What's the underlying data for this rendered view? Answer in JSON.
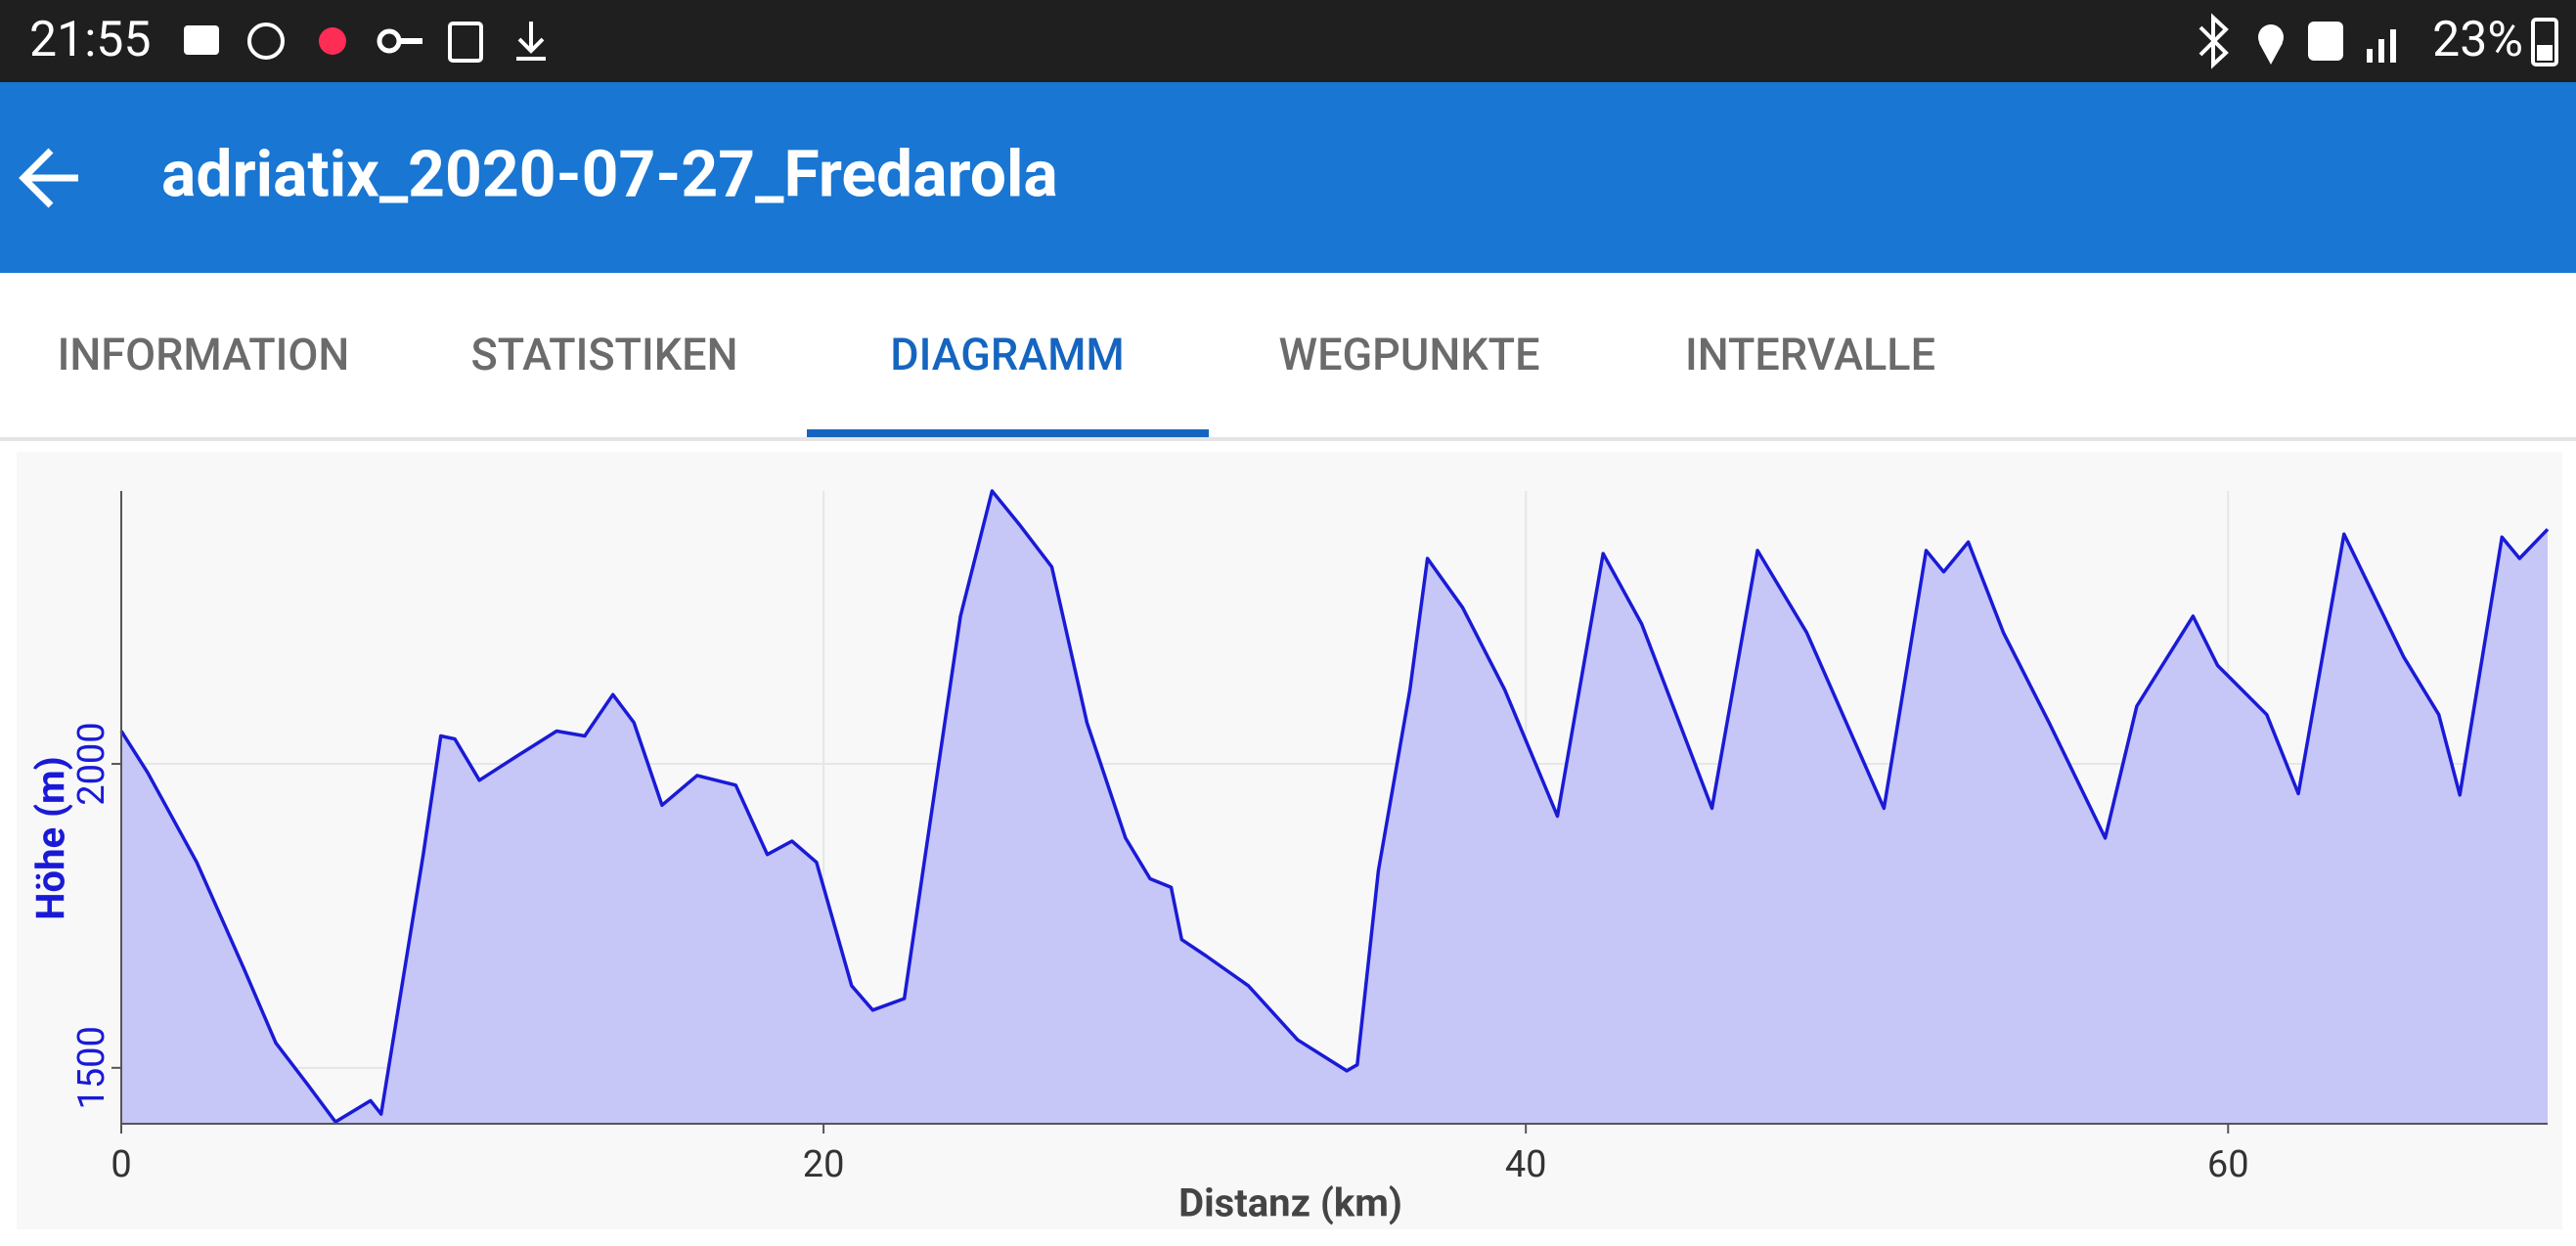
{
  "status_bar": {
    "time": "21:55",
    "battery": "23%"
  },
  "app_bar": {
    "title": "adriatix_2020-07-27_Fredarola"
  },
  "tabs": [
    "INFORMATION",
    "STATISTIKEN",
    "DIAGRAMM",
    "WEGPUNKTE",
    "INTERVALLE"
  ],
  "chart_data": {
    "type": "area",
    "x_label": "Distanz (km)",
    "y_label": "Höhe (m)",
    "color": "#1a1ad6",
    "fill": "#c6c6f7",
    "grid": true,
    "xlim": [
      0,
      69.1
    ],
    "ylim": [
      1408,
      2449
    ],
    "xticks": [
      0,
      20,
      40,
      60
    ],
    "yticks": [
      1500,
      2000
    ],
    "x": [
      0,
      0.75,
      2.15,
      3.5,
      4.4,
      5.3,
      6.1,
      7.1,
      7.4,
      8.6,
      9.1,
      9.5,
      10.2,
      11.3,
      12.4,
      13.2,
      14.0,
      14.6,
      15.4,
      16.4,
      17.5,
      18.4,
      19.1,
      19.8,
      20.8,
      21.4,
      22.3,
      22.9,
      23.9,
      24.8,
      25.6,
      26.5,
      27.5,
      28.6,
      29.3,
      29.9,
      30.2,
      30.9,
      32.1,
      33.5,
      34.9,
      35.2,
      35.8,
      36.7,
      37.2,
      38.2,
      39.4,
      40.9,
      42.2,
      43.3,
      45.3,
      46.6,
      48.0,
      50.2,
      51.4,
      51.9,
      52.6,
      53.6,
      54.9,
      56.5,
      57.4,
      59.0,
      59.7,
      61.1,
      62.0,
      63.3,
      65.0,
      66.0,
      66.6,
      67.8,
      68.3,
      69.1
    ],
    "values": [
      2054,
      1986,
      1838,
      1662,
      1541,
      1473,
      1411,
      1446,
      1424,
      1851,
      2046,
      2041,
      1973,
      2014,
      2054,
      2046,
      2114,
      2068,
      1932,
      1981,
      1965,
      1851,
      1873,
      1838,
      1635,
      1595,
      1614,
      1851,
      2243,
      2449,
      2392,
      2324,
      2068,
      1878,
      1811,
      1797,
      1711,
      1684,
      1635,
      1546,
      1495,
      1505,
      1824,
      2122,
      2338,
      2257,
      2122,
      1914,
      2346,
      2230,
      1927,
      2351,
      2216,
      1927,
      2351,
      2316,
      2365,
      2216,
      2068,
      1878,
      2095,
      2243,
      2162,
      2081,
      1951,
      2378,
      2176,
      2081,
      1949,
      2373,
      2338,
      2386
    ]
  }
}
